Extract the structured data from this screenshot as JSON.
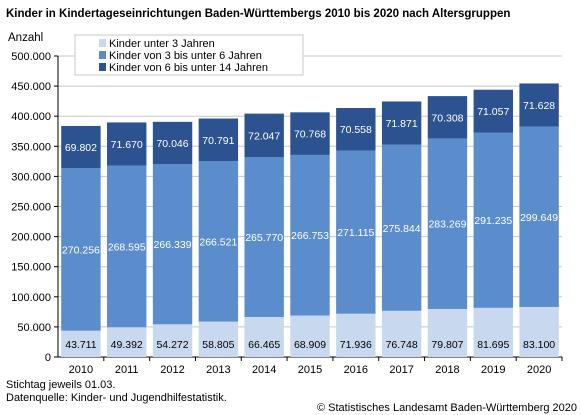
{
  "title": "Kinder in Kindertageseinrichtungen Baden-Württembergs 2010 bis 2020 nach Altersgruppen",
  "footer": {
    "note": "Stichtag jeweils 01.03.",
    "source": "Datenquelle: Kinder- und Jugendhilfestatistik.",
    "copyright": "© Statistisches Landesamt Baden-Württemberg 2020"
  },
  "chart_data": {
    "type": "bar",
    "stacked": true,
    "title": "Kinder in Kindertageseinrichtungen Baden-Württembergs 2010 bis 2020 nach Altersgruppen",
    "ylabel": "Anzahl",
    "xlabel": "",
    "ylim": [
      0,
      500000
    ],
    "yticks": [
      "0",
      "50.000",
      "100.000",
      "150.000",
      "200.000",
      "250.000",
      "300.000",
      "350.000",
      "400.000",
      "450.000",
      "500.000"
    ],
    "grid": true,
    "legend_position": "top-left",
    "categories": [
      "2010",
      "2011",
      "2012",
      "2013",
      "2014",
      "2015",
      "2016",
      "2017",
      "2018",
      "2019",
      "2020"
    ],
    "series": [
      {
        "name": "Kinder unter 3 Jahren",
        "color": "#c8d9ef",
        "label_color": "#000000",
        "values": [
          43711,
          49392,
          54272,
          58805,
          66465,
          68909,
          71936,
          76748,
          79807,
          81695,
          83100
        ],
        "labels": [
          "43.711",
          "49.392",
          "54.272",
          "58.805",
          "66.465",
          "68.909",
          "71.936",
          "76.748",
          "79.807",
          "81.695",
          "83.100"
        ]
      },
      {
        "name": "Kinder von 3 bis unter 6 Jahren",
        "color": "#5b8ccb",
        "label_color": "#ffffff",
        "values": [
          270256,
          268595,
          266339,
          266521,
          265770,
          266753,
          271115,
          275844,
          283269,
          291235,
          299649
        ],
        "labels": [
          "270.256",
          "268.595",
          "266.339",
          "266.521",
          "265.770",
          "266.753",
          "271.115",
          "275.844",
          "283.269",
          "291.235",
          "299.649"
        ]
      },
      {
        "name": "Kinder von 6 bis unter 14 Jahren",
        "color": "#2c5290",
        "label_color": "#ffffff",
        "values": [
          69802,
          71670,
          70046,
          70791,
          72047,
          70768,
          70558,
          71871,
          70308,
          71057,
          71628
        ],
        "labels": [
          "69.802",
          "71.670",
          "70.046",
          "70.791",
          "72.047",
          "70.768",
          "70.558",
          "71.871",
          "70.308",
          "71.057",
          "71.628"
        ]
      }
    ]
  }
}
